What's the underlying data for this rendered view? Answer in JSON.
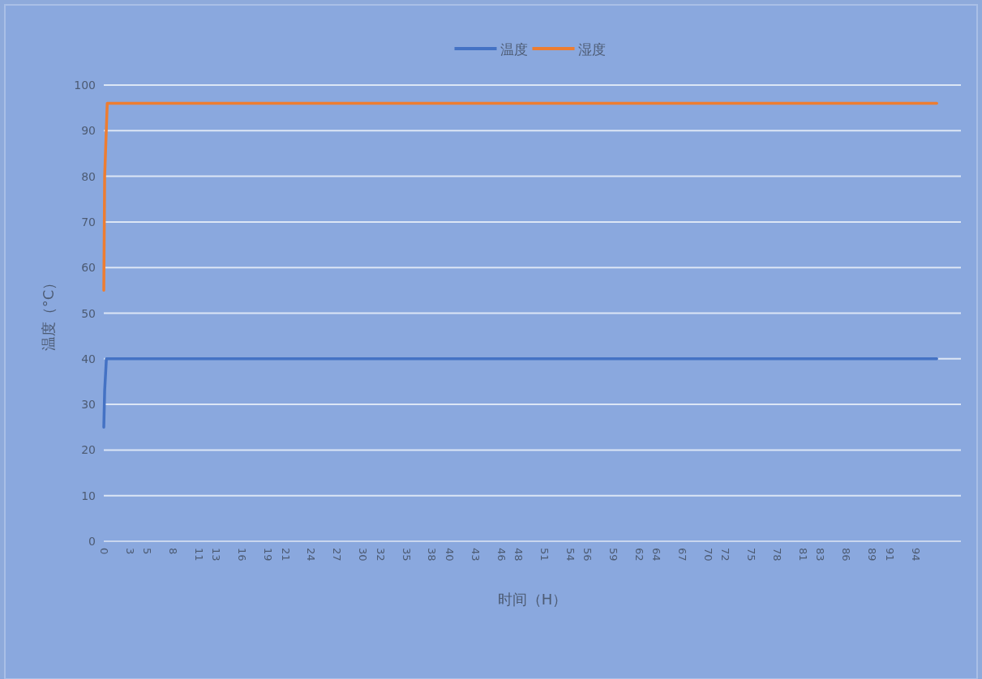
{
  "chart_data": {
    "type": "line",
    "xlabel": "时间（H）",
    "ylabel": "温度（°C）",
    "legend": "top",
    "grid": "y",
    "xlim": [
      0,
      99.3
    ],
    "ylim": [
      0,
      100
    ],
    "yticks": [
      0,
      10,
      20,
      30,
      40,
      50,
      60,
      70,
      80,
      90,
      100
    ],
    "xticks": [
      0,
      3,
      5,
      8,
      11,
      13,
      16,
      19,
      21,
      24,
      27,
      30,
      32,
      35,
      38,
      40,
      43,
      46,
      48,
      51,
      54,
      56,
      59,
      62,
      64,
      67,
      70,
      72,
      75,
      78,
      81,
      83,
      86,
      89,
      91,
      94
    ],
    "series": [
      {
        "name": "温度",
        "color": "#4472c4",
        "x": [
          0,
          0.1,
          0.3,
          96.5
        ],
        "values": [
          25,
          33,
          40,
          40
        ]
      },
      {
        "name": "湿度",
        "color": "#ed7d31",
        "x": [
          0,
          0.1,
          0.4,
          96.5
        ],
        "values": [
          55,
          80,
          96,
          96
        ]
      }
    ]
  }
}
